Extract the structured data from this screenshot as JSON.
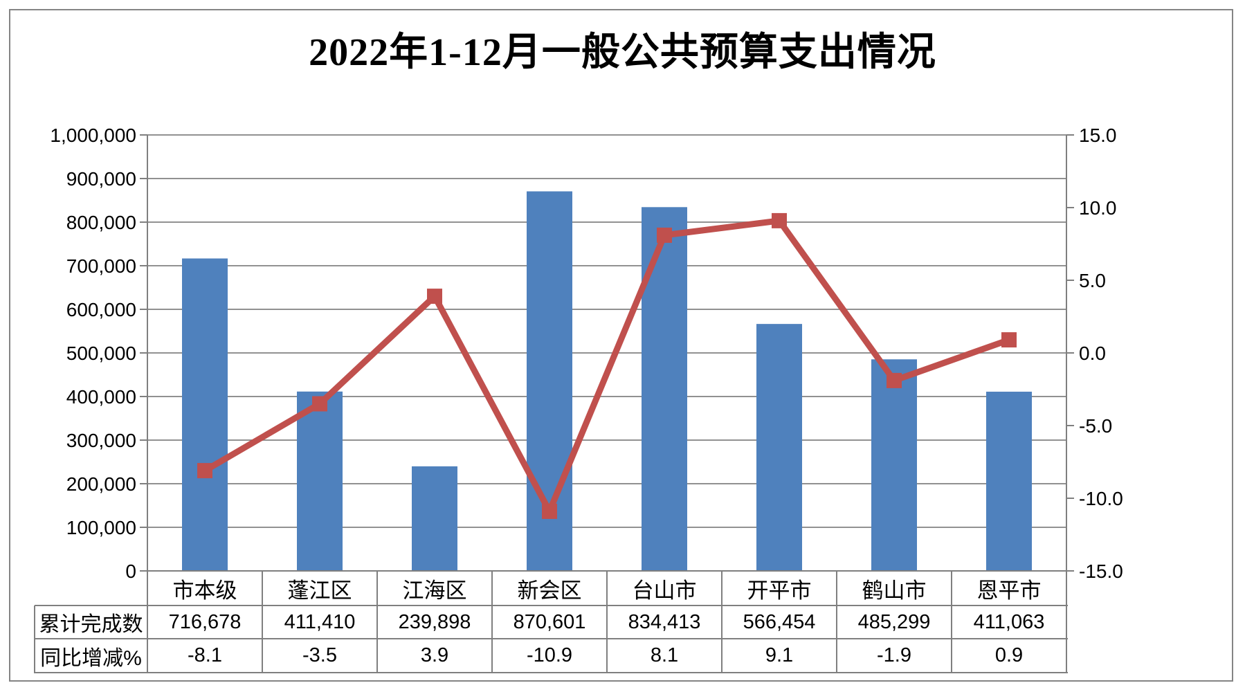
{
  "title": "2022年1-12月一般公共预算支出情况",
  "colors": {
    "bar": "#4F81BD",
    "line": "#C0504D",
    "gridline": "#919191",
    "axis": "#7f7f7f",
    "table_border": "#7f7f7f",
    "text": "#000000"
  },
  "chart_data": {
    "type": "combo-bar-line",
    "title": "2022年1-12月一般公共预算支出情况",
    "categories": [
      "市本级",
      "蓬江区",
      "江海区",
      "新会区",
      "台山市",
      "开平市",
      "鹤山市",
      "恩平市"
    ],
    "series": [
      {
        "name": "累计完成数",
        "type": "bar",
        "axis": "left",
        "color": "#4F81BD",
        "values": [
          716678,
          411410,
          239898,
          870601,
          834413,
          566454,
          485299,
          411063
        ]
      },
      {
        "name": "同比增减%",
        "type": "line",
        "axis": "right",
        "color": "#C0504D",
        "marker": "square",
        "values": [
          -8.1,
          -3.5,
          3.9,
          -10.9,
          8.1,
          9.1,
          -1.9,
          0.9
        ]
      }
    ],
    "left_axis": {
      "min": 0,
      "max": 1000000,
      "step": 100000,
      "tick_labels": [
        "1,000,000",
        "900,000",
        "800,000",
        "700,000",
        "600,000",
        "500,000",
        "400,000",
        "300,000",
        "200,000",
        "100,000",
        "0"
      ]
    },
    "right_axis": {
      "min": -15,
      "max": 15,
      "step": 5,
      "tick_labels": [
        "15.0",
        "10.0",
        "5.0",
        "0.0",
        "-5.0",
        "-10.0",
        "-15.0"
      ]
    },
    "grid": true,
    "legend": "none",
    "data_table": {
      "row_headers": [
        "累计完成数",
        "同比增减%"
      ],
      "rows": [
        [
          "716,678",
          "411,410",
          "239,898",
          "870,601",
          "834,413",
          "566,454",
          "485,299",
          "411,063"
        ],
        [
          "-8.1",
          "-3.5",
          "3.9",
          "-10.9",
          "8.1",
          "9.1",
          "-1.9",
          "0.9"
        ]
      ]
    }
  }
}
